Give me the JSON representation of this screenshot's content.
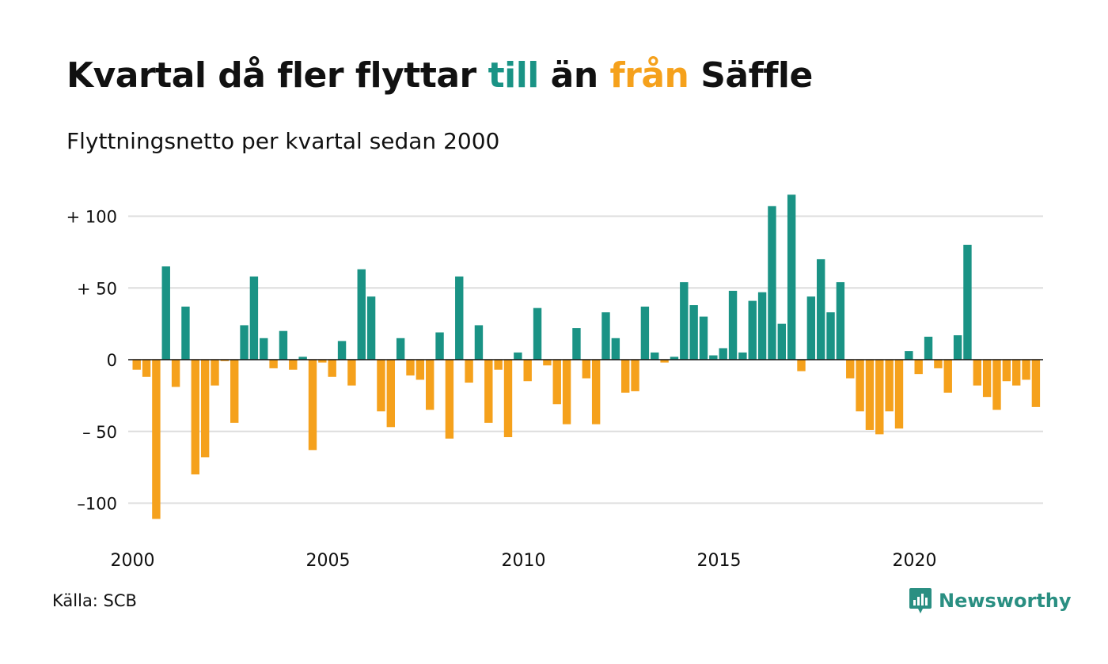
{
  "title": {
    "part1": "Kvartal då fler flyttar ",
    "part2": "till",
    "part3": " än ",
    "part4": "från",
    "part5": " Säffle"
  },
  "subtitle": "Flyttningsnetto per kvartal sedan 2000",
  "source": "Källa: SCB",
  "brand": "Newsworthy",
  "colors": {
    "positive": "#1a9385",
    "negative": "#f5a11c",
    "grid": "#dddddd",
    "text": "#111111"
  },
  "chart_data": {
    "type": "bar",
    "title": "Kvartal då fler flyttar till än från Säffle",
    "subtitle": "Flyttningsnetto per kvartal sedan 2000",
    "xlabel": "",
    "ylabel": "",
    "ylim": [
      -120,
      125
    ],
    "y_ticks": [
      {
        "value": 100,
        "label": "+ 100"
      },
      {
        "value": 50,
        "label": "+  50"
      },
      {
        "value": 0,
        "label": "0"
      },
      {
        "value": -50,
        "label": "– 50"
      },
      {
        "value": -100,
        "label": "–100"
      }
    ],
    "x_ticks": [
      "2000",
      "2005",
      "2010",
      "2015",
      "2020"
    ],
    "start_year": 2000,
    "grid": true,
    "legend": "none",
    "values": [
      -7,
      -12,
      -111,
      65,
      -19,
      37,
      -80,
      -68,
      -18,
      -1,
      -44,
      24,
      58,
      15,
      -6,
      20,
      -7,
      2,
      -63,
      -2,
      -12,
      13,
      -18,
      63,
      44,
      -36,
      -47,
      15,
      -11,
      -14,
      -35,
      19,
      -55,
      58,
      -16,
      24,
      -44,
      -7,
      -54,
      5,
      -15,
      36,
      -4,
      -31,
      -45,
      22,
      -13,
      -45,
      33,
      15,
      -23,
      -22,
      37,
      5,
      -2,
      2,
      54,
      38,
      30,
      3,
      8,
      48,
      5,
      41,
      47,
      107,
      25,
      115,
      -8,
      44,
      70,
      33,
      54,
      -13,
      -36,
      -49,
      -52,
      -36,
      -48,
      6,
      -10,
      16,
      -6,
      -23,
      17,
      80,
      -18,
      -26,
      -35,
      -15,
      -18,
      -14,
      -33
    ]
  }
}
